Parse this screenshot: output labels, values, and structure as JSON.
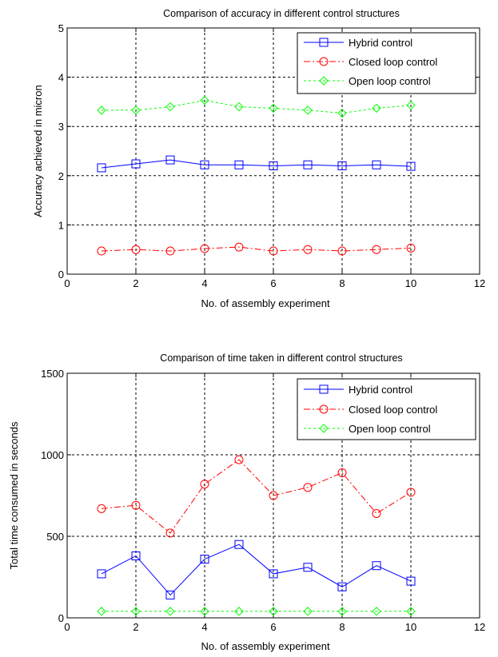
{
  "chart_data": [
    {
      "type": "line",
      "title": "Comparison of accuracy in different control structures",
      "xlabel": "No. of assembly experiment",
      "ylabel": "Accuracy achieved in micron",
      "xlim": [
        0,
        12
      ],
      "ylim": [
        0,
        5
      ],
      "xticks": [
        "0",
        "2",
        "4",
        "6",
        "8",
        "10",
        "12"
      ],
      "yticks": [
        "0",
        "1",
        "2",
        "3",
        "4",
        "5"
      ],
      "grid": true,
      "legend_position": "top-right",
      "x": [
        1,
        2,
        3,
        4,
        5,
        6,
        7,
        8,
        9,
        10
      ],
      "series": [
        {
          "name": "Hybrid control",
          "color": "#0000ff",
          "marker": "square",
          "dash": "solid",
          "values": [
            2.16,
            2.24,
            2.32,
            2.22,
            2.22,
            2.2,
            2.22,
            2.2,
            2.22,
            2.19
          ]
        },
        {
          "name": "Closed loop control",
          "color": "#ff0000",
          "marker": "circle",
          "dash": "dashdot",
          "values": [
            0.47,
            0.5,
            0.47,
            0.52,
            0.55,
            0.47,
            0.5,
            0.47,
            0.5,
            0.53
          ]
        },
        {
          "name": "Open loop control",
          "color": "#00ff00",
          "marker": "diamond",
          "dash": "dotted",
          "values": [
            3.33,
            3.33,
            3.4,
            3.53,
            3.4,
            3.37,
            3.33,
            3.27,
            3.37,
            3.43
          ]
        }
      ]
    },
    {
      "type": "line",
      "title": "Comparison of time taken in different control structures",
      "xlabel": "No. of assembly experiment",
      "ylabel": "Total time consumed in seconds",
      "xlim": [
        0,
        12
      ],
      "ylim": [
        0,
        1500
      ],
      "xticks": [
        "0",
        "2",
        "4",
        "6",
        "8",
        "10",
        "12"
      ],
      "yticks": [
        "0",
        "500",
        "1000",
        "1500"
      ],
      "grid": true,
      "legend_position": "top-right",
      "x": [
        1,
        2,
        3,
        4,
        5,
        6,
        7,
        8,
        9,
        10
      ],
      "series": [
        {
          "name": "Hybrid control",
          "color": "#0000ff",
          "marker": "square",
          "dash": "solid",
          "values": [
            270,
            380,
            140,
            360,
            450,
            270,
            310,
            190,
            320,
            225
          ]
        },
        {
          "name": "Closed loop control",
          "color": "#ff0000",
          "marker": "circle",
          "dash": "dashdot",
          "values": [
            670,
            690,
            520,
            820,
            970,
            750,
            800,
            890,
            640,
            770
          ]
        },
        {
          "name": "Open loop control",
          "color": "#00ff00",
          "marker": "diamond",
          "dash": "dotted",
          "values": [
            40,
            40,
            40,
            40,
            40,
            40,
            40,
            40,
            40,
            40
          ]
        }
      ]
    }
  ]
}
